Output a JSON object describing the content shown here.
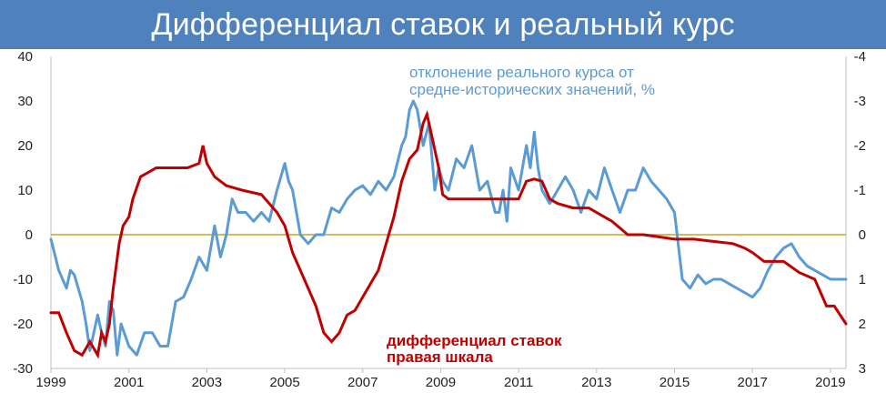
{
  "chart_data": {
    "type": "line",
    "title": "Дифференциал ставок и реальный курс",
    "x_ticks": [
      "1999",
      "2001",
      "2003",
      "2005",
      "2007",
      "2009",
      "2011",
      "2013",
      "2015",
      "2017",
      "2019"
    ],
    "xlim": [
      1999,
      2019.4
    ],
    "y_left": {
      "ticks": [
        "40",
        "30",
        "20",
        "10",
        "0",
        "-10",
        "-20",
        "-30"
      ],
      "ylim": [
        -30,
        40
      ]
    },
    "y_right": {
      "ticks": [
        "-4",
        "-3",
        "-2",
        "-1",
        "0",
        "1",
        "2",
        "3"
      ],
      "ylim": [
        3,
        -4
      ],
      "inverted": true
    },
    "reference_line": {
      "y": 0,
      "color": "#c9a227"
    },
    "grid": false,
    "annotations": {
      "blue_line1": "отклонение реального курса от",
      "blue_line2": "средне-исторических значений, %",
      "red_line1": "дифференциал ставок",
      "red_line2": "правая шкала"
    },
    "series": [
      {
        "label": "отклонение реального курса от средне-исторических значений, %",
        "axis": "left",
        "color": "#5b9bd5",
        "x": [
          1999.0,
          1999.2,
          1999.4,
          1999.5,
          1999.6,
          1999.8,
          1999.9,
          2000.0,
          2000.2,
          2000.3,
          2000.4,
          2000.5,
          2000.6,
          2000.7,
          2000.8,
          2001.0,
          2001.2,
          2001.4,
          2001.6,
          2001.8,
          2002.0,
          2002.2,
          2002.4,
          2002.6,
          2002.8,
          2003.0,
          2003.2,
          2003.35,
          2003.5,
          2003.65,
          2003.8,
          2004.0,
          2004.2,
          2004.4,
          2004.6,
          2004.8,
          2005.0,
          2005.1,
          2005.2,
          2005.4,
          2005.6,
          2005.8,
          2006.0,
          2006.2,
          2006.4,
          2006.6,
          2006.8,
          2007.0,
          2007.2,
          2007.4,
          2007.6,
          2007.8,
          2008.0,
          2008.1,
          2008.2,
          2008.3,
          2008.4,
          2008.55,
          2008.7,
          2008.85,
          2008.95,
          2009.05,
          2009.2,
          2009.4,
          2009.6,
          2009.8,
          2010.0,
          2010.2,
          2010.4,
          2010.5,
          2010.6,
          2010.7,
          2010.8,
          2011.0,
          2011.2,
          2011.3,
          2011.4,
          2011.5,
          2011.6,
          2011.8,
          2012.0,
          2012.2,
          2012.4,
          2012.6,
          2012.8,
          2013.0,
          2013.2,
          2013.4,
          2013.6,
          2013.8,
          2014.0,
          2014.2,
          2014.4,
          2014.6,
          2014.8,
          2015.0,
          2015.2,
          2015.4,
          2015.6,
          2015.8,
          2016.0,
          2016.2,
          2016.4,
          2016.6,
          2016.8,
          2017.0,
          2017.2,
          2017.4,
          2017.6,
          2017.8,
          2018.0,
          2018.2,
          2018.4,
          2018.6,
          2018.8,
          2019.0,
          2019.2,
          2019.4
        ],
        "y": [
          -1,
          -8,
          -12,
          -8,
          -9,
          -15,
          -20,
          -26,
          -18,
          -22,
          -25,
          -15,
          -17,
          -27,
          -20,
          -25,
          -27,
          -22,
          -22,
          -25,
          -25,
          -15,
          -14,
          -10,
          -5,
          -8,
          2,
          -5,
          0,
          8,
          5,
          5,
          3,
          5,
          3,
          10,
          16,
          12,
          10,
          0,
          -2,
          0,
          0,
          6,
          5,
          8,
          10,
          11,
          9,
          12,
          10,
          13,
          20,
          22,
          28,
          30,
          28,
          20,
          25,
          10,
          15,
          12,
          10,
          17,
          15,
          20,
          10,
          12,
          5,
          5,
          10,
          3,
          15,
          10,
          20,
          15,
          23,
          15,
          10,
          7,
          10,
          13,
          10,
          5,
          10,
          8,
          15,
          10,
          5,
          10,
          10,
          15,
          12,
          10,
          8,
          5,
          -10,
          -12,
          -9,
          -11,
          -10,
          -10,
          -11,
          -12,
          -13,
          -14,
          -12,
          -8,
          -5,
          -3,
          -2,
          -5,
          -7,
          -8,
          -9,
          -10,
          -10,
          -10
        ]
      },
      {
        "label": "дифференциал ставок правая шкала",
        "axis": "right",
        "color": "#c00000",
        "x": [
          1999.0,
          1999.2,
          1999.4,
          1999.6,
          1999.8,
          2000.0,
          2000.2,
          2000.3,
          2000.4,
          2000.5,
          2000.6,
          2000.75,
          2000.85,
          2001.0,
          2001.1,
          2001.3,
          2001.5,
          2001.7,
          2001.9,
          2002.2,
          2002.5,
          2002.8,
          2002.9,
          2003.0,
          2003.2,
          2003.5,
          2003.9,
          2004.4,
          2004.8,
          2005.0,
          2005.2,
          2005.5,
          2005.8,
          2006.0,
          2006.2,
          2006.4,
          2006.6,
          2006.8,
          2007.0,
          2007.2,
          2007.4,
          2007.6,
          2007.8,
          2008.0,
          2008.2,
          2008.4,
          2008.55,
          2008.65,
          2008.8,
          2008.95,
          2009.05,
          2009.2,
          2009.5,
          2010.0,
          2010.5,
          2011.0,
          2011.2,
          2011.4,
          2011.6,
          2011.8,
          2012.0,
          2012.4,
          2012.8,
          2013.4,
          2013.8,
          2014.2,
          2014.6,
          2015.0,
          2015.5,
          2016.0,
          2016.5,
          2016.8,
          2017.0,
          2017.3,
          2017.6,
          2017.8,
          2018.2,
          2018.6,
          2018.9,
          2019.1,
          2019.4
        ],
        "y": [
          1.75,
          1.75,
          2.2,
          2.6,
          2.7,
          2.4,
          2.7,
          2.2,
          2.4,
          2.0,
          1.2,
          0.2,
          -0.2,
          -0.4,
          -0.8,
          -1.3,
          -1.4,
          -1.5,
          -1.5,
          -1.5,
          -1.5,
          -1.6,
          -2.0,
          -1.6,
          -1.3,
          -1.1,
          -1.0,
          -0.9,
          -0.5,
          -0.2,
          0.4,
          1.0,
          1.6,
          2.2,
          2.4,
          2.2,
          1.8,
          1.7,
          1.4,
          1.1,
          0.8,
          0.2,
          -0.4,
          -1.2,
          -1.7,
          -1.9,
          -2.5,
          -2.7,
          -2.1,
          -1.5,
          -0.9,
          -0.8,
          -0.8,
          -0.8,
          -0.8,
          -0.8,
          -1.2,
          -1.25,
          -1.2,
          -0.8,
          -0.7,
          -0.6,
          -0.6,
          -0.3,
          0.0,
          0.0,
          0.05,
          0.1,
          0.1,
          0.15,
          0.2,
          0.3,
          0.4,
          0.6,
          0.6,
          0.6,
          0.85,
          1.0,
          1.6,
          1.6,
          2.0
        ]
      }
    ]
  }
}
